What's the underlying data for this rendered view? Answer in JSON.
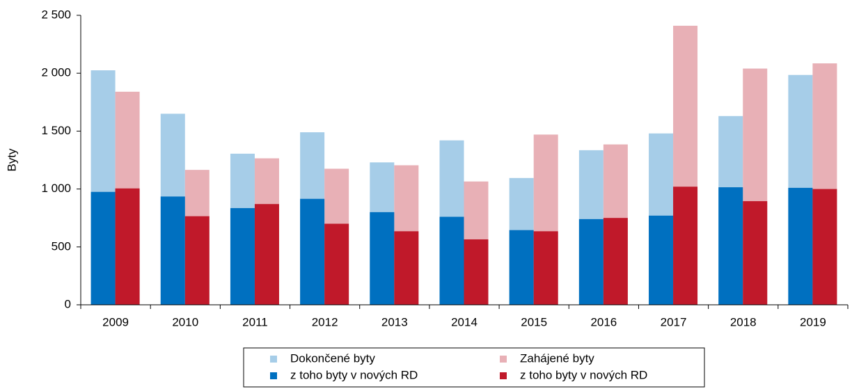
{
  "chart_data": {
    "type": "bar",
    "ylabel": "Byty",
    "categories": [
      "2009",
      "2010",
      "2011",
      "2012",
      "2013",
      "2014",
      "2015",
      "2016",
      "2017",
      "2018",
      "2019"
    ],
    "series": [
      {
        "name": "Dokončené byty",
        "color": "#a6cde8",
        "values": [
          2025,
          1650,
          1305,
          1490,
          1230,
          1420,
          1095,
          1335,
          1480,
          1630,
          1985
        ]
      },
      {
        "name": "Zahájené byty",
        "color": "#e8b0b6",
        "values": [
          1840,
          1165,
          1265,
          1175,
          1205,
          1065,
          1470,
          1385,
          2410,
          2040,
          2085
        ]
      },
      {
        "name": "z toho byty v nových RD",
        "color": "#0070c0",
        "values": [
          975,
          935,
          835,
          915,
          800,
          760,
          645,
          740,
          770,
          1015,
          1010
        ]
      },
      {
        "name": "z toho byty v nových RD",
        "color": "#c0192a",
        "values": [
          1005,
          765,
          870,
          700,
          635,
          565,
          635,
          750,
          1020,
          895,
          1000
        ]
      }
    ],
    "ylim": [
      0,
      2500
    ],
    "yticks": [
      0,
      500,
      {
        "value": 1000,
        "label": "1 000"
      },
      {
        "value": 1500,
        "label": "1 500"
      },
      {
        "value": 2000,
        "label": "2 000"
      },
      {
        "value": 2500,
        "label": "2 500"
      }
    ],
    "grid": false
  }
}
